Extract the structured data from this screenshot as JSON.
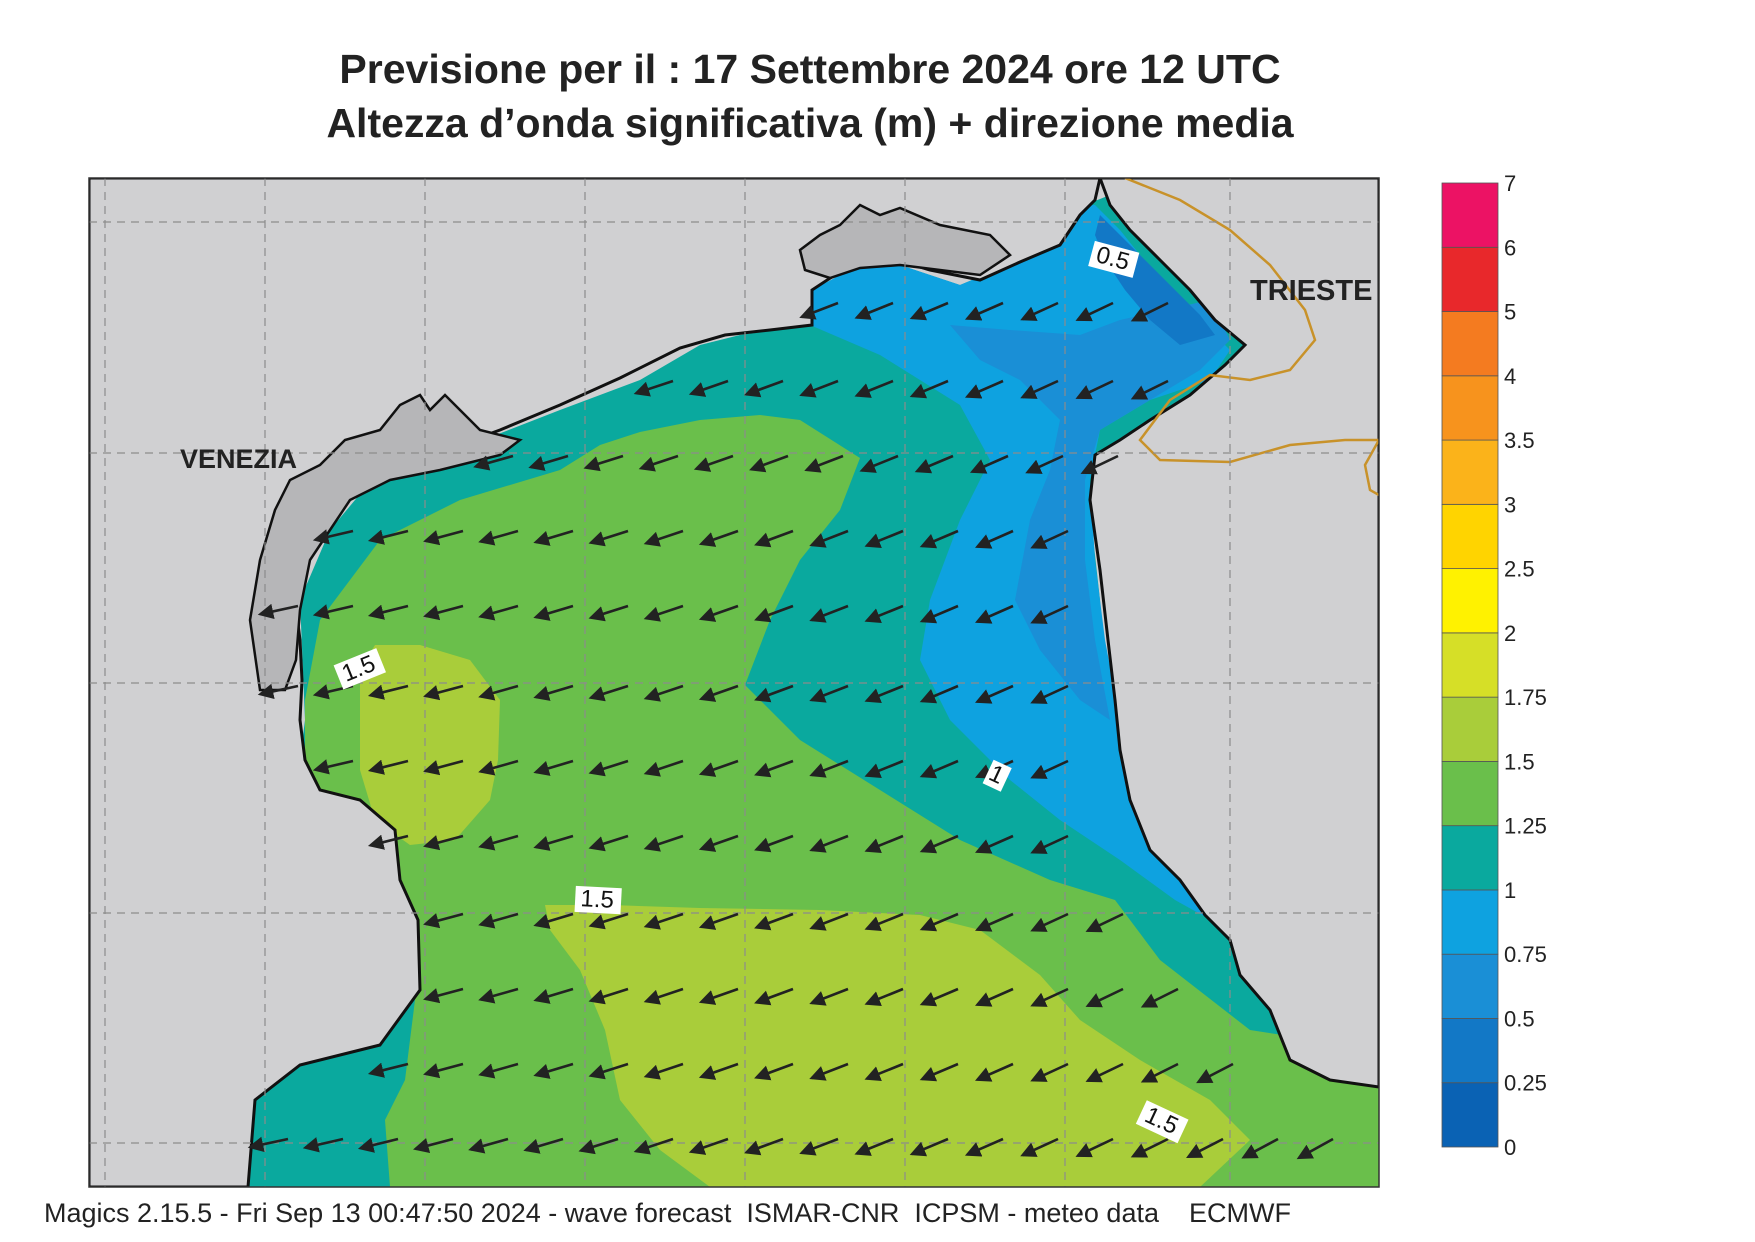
{
  "title": {
    "line1": "Previsione per il  :  17 Settembre 2024   ore 12 UTC",
    "line2": "Altezza d’onda significativa (m) + direzione media"
  },
  "cities": [
    {
      "name": "VENEZIA"
    },
    {
      "name": "TRIESTE"
    }
  ],
  "contour_labels": [
    "0.5",
    "1",
    "1.5",
    "1.5",
    "1.5"
  ],
  "colorbar": {
    "unit": "m",
    "ticks": [
      "0",
      "0.25",
      "0.5",
      "0.75",
      "1",
      "1.25",
      "1.5",
      "1.75",
      "2",
      "2.5",
      "3",
      "3.5",
      "4",
      "5",
      "6",
      "7"
    ],
    "colors": [
      "#0a62b4",
      "#1278c6",
      "#1a8fd6",
      "#0ea2e0",
      "#0aa99e",
      "#6abf4b",
      "#a9cd3a",
      "#d6df27",
      "#fff200",
      "#ffd400",
      "#fbb31a",
      "#f7931d",
      "#f47b20",
      "#e8282b",
      "#ec1264"
    ]
  },
  "palette": {
    "land": "#d0d0d2",
    "land_dark": "#b6b6b8",
    "border": "#c8922a",
    "arrow": "#222222"
  },
  "wave_direction": "W-SW",
  "footer": "Magics 2.15.5 - Fri Sep 13 00:47:50 2024 - wave forecast  ISMAR-CNR  ICPSM - meteo data    ECMWF"
}
